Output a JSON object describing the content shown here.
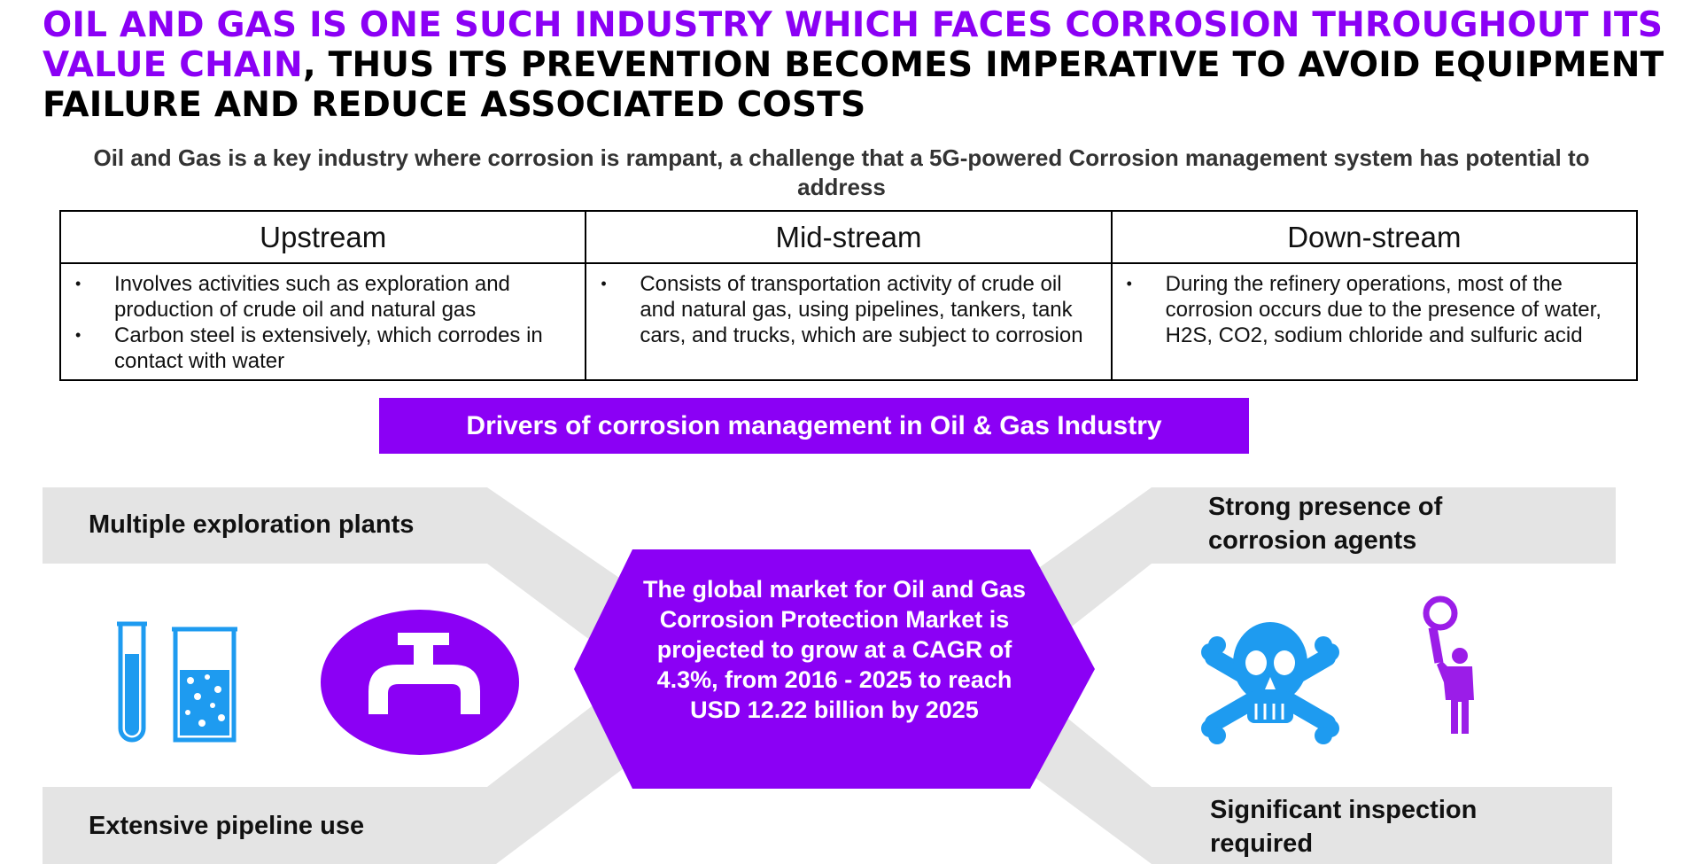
{
  "title": {
    "highlight": "Oil and Gas is one such industry which faces corrosion throughout its value chain",
    "rest": ", thus its prevention becomes imperative to avoid equipment failure and reduce associated costs"
  },
  "subtitle": "Oil and Gas is a key industry where corrosion is rampant, a challenge that a 5G-powered Corrosion management system has potential to address",
  "value_chain": {
    "columns": [
      {
        "header": "Upstream",
        "bullets": [
          "Involves activities such as exploration and production of crude oil and natural gas",
          "Carbon steel is extensively, which corrodes in contact with water"
        ]
      },
      {
        "header": "Mid-stream",
        "bullets": [
          "Consists of transportation activity of crude oil and natural gas, using pipelines, tankers, tank cars, and trucks, which are subject to corrosion"
        ]
      },
      {
        "header": "Down-stream",
        "bullets": [
          "During the refinery operations, most of the corrosion occurs due to the presence of water, H2S, CO2, sodium chloride and sulfuric acid"
        ]
      }
    ]
  },
  "drivers": {
    "banner": "Drivers of corrosion management in Oil & Gas Industry",
    "top_left": "Multiple exploration plants",
    "bottom_left": "Extensive pipeline use",
    "top_right": "Strong presence of corrosion agents",
    "bottom_right": "Significant inspection required",
    "center_text": "The global market for Oil and Gas Corrosion Protection Market  is projected to grow at a CAGR of 4.3%, from 2016 - 2025 to reach USD 12.22 billion by 2025",
    "icons": [
      "test-tubes-icon",
      "water-tap-icon",
      "skull-crossbones-icon",
      "inspector-magnifier-icon"
    ]
  },
  "colors": {
    "accent": "#8b00f5",
    "arrow_gray": "#e4e4e4",
    "icon_blue": "#1e9bf0"
  }
}
